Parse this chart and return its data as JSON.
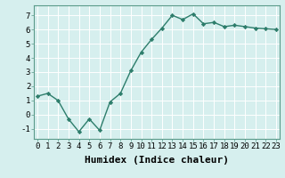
{
  "x": [
    0,
    1,
    2,
    3,
    4,
    5,
    6,
    7,
    8,
    9,
    10,
    11,
    12,
    13,
    14,
    15,
    16,
    17,
    18,
    19,
    20,
    21,
    22,
    23
  ],
  "y": [
    1.3,
    1.5,
    1.0,
    -0.3,
    -1.2,
    -0.3,
    -1.1,
    0.9,
    1.5,
    3.1,
    4.4,
    5.3,
    6.1,
    7.0,
    6.7,
    7.1,
    6.4,
    6.5,
    6.2,
    6.3,
    6.2,
    6.1,
    6.05,
    6.0
  ],
  "line_color": "#2d7d6b",
  "marker": "D",
  "marker_size": 2.2,
  "xlabel": "Humidex (Indice chaleur)",
  "ylim": [
    -1.7,
    7.7
  ],
  "xlim": [
    -0.3,
    23.3
  ],
  "yticks": [
    -1,
    0,
    1,
    2,
    3,
    4,
    5,
    6,
    7
  ],
  "xticks": [
    0,
    1,
    2,
    3,
    4,
    5,
    6,
    7,
    8,
    9,
    10,
    11,
    12,
    13,
    14,
    15,
    16,
    17,
    18,
    19,
    20,
    21,
    22,
    23
  ],
  "bg_color": "#d6efee",
  "grid_color": "#ffffff",
  "xlabel_fontsize": 8,
  "tick_fontsize": 6.5,
  "linewidth": 1.0
}
